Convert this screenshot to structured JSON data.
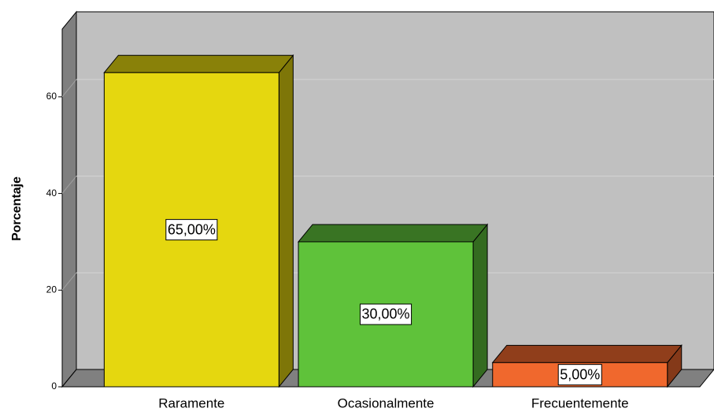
{
  "chart_data": {
    "type": "bar3d",
    "y_label": "Porcentaje",
    "categories": [
      "Raramente",
      "Ocasionalmente",
      "Frecuentemente"
    ],
    "values": [
      65,
      30,
      5
    ],
    "value_labels": [
      "65,00%",
      "30,00%",
      "5,00%"
    ],
    "colors": [
      "#e5d70f",
      "#5fc23a",
      "#f0682d"
    ],
    "ylim": [
      0,
      74
    ],
    "yticks": [
      0,
      20,
      40,
      60
    ],
    "grid": true
  }
}
